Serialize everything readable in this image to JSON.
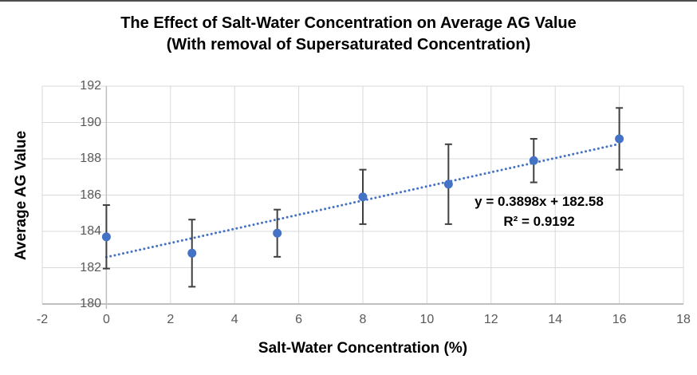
{
  "chart_data": {
    "type": "scatter",
    "title_line1": "The Effect of Salt-Water Concentration on Average AG Value",
    "title_line2": "(With removal of Supersaturated Concentration)",
    "xlabel": "Salt-Water Concentration (%)",
    "ylabel": "Average AG Value",
    "xlim": [
      -2,
      18
    ],
    "ylim": [
      180,
      192
    ],
    "x_ticks": [
      "-2",
      "0",
      "2",
      "4",
      "6",
      "8",
      "10",
      "12",
      "14",
      "16",
      "18"
    ],
    "y_ticks": [
      "180",
      "182",
      "184",
      "186",
      "188",
      "190",
      "192"
    ],
    "grid": true,
    "legend": "none",
    "series": [
      {
        "name": "Average AG Value",
        "marker": "circle",
        "points": [
          {
            "x": 0,
            "y": 183.7,
            "err": 1.75
          },
          {
            "x": 2.67,
            "y": 182.8,
            "err": 1.85
          },
          {
            "x": 5.33,
            "y": 183.9,
            "err": 1.3
          },
          {
            "x": 8,
            "y": 185.9,
            "err": 1.5
          },
          {
            "x": 10.67,
            "y": 186.6,
            "err": 2.2
          },
          {
            "x": 13.33,
            "y": 187.9,
            "err": 1.2
          },
          {
            "x": 16,
            "y": 189.1,
            "err": 1.7
          }
        ]
      }
    ],
    "trendline": {
      "style": "dotted",
      "slope": 0.3898,
      "intercept": 182.58,
      "x_start": 0,
      "x_end": 16,
      "equation_label": "y = 0.3898x + 182.58",
      "r_squared_label": "R² = 0.9192"
    },
    "colors": {
      "marker": "#4472C4",
      "trendline": "#4472C4",
      "error_bar": "#404040",
      "gridline": "#D9D9D9",
      "axis_line": "#BFBFBF",
      "tick_label": "#595959",
      "title_text": "#000000",
      "top_border": "#4d4d4d",
      "background": "#ffffff"
    }
  }
}
